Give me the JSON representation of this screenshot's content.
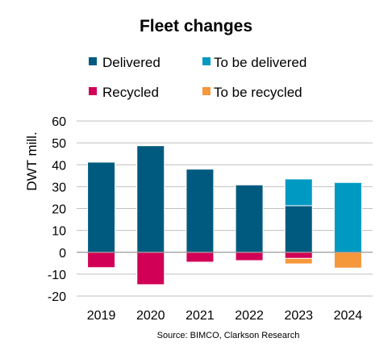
{
  "chart_data": {
    "type": "bar",
    "stacked": true,
    "title": "Fleet changes",
    "ylabel": "DWT mill.",
    "xlabel": "",
    "ylim": [
      -20,
      60
    ],
    "yticks": [
      60,
      50,
      40,
      30,
      20,
      10,
      0,
      -10,
      -20
    ],
    "grid": true,
    "legend_position": "top",
    "categories": [
      "2019",
      "2020",
      "2021",
      "2022",
      "2023",
      "2024"
    ],
    "series": [
      {
        "name": "Delivered",
        "color": "#005a7f",
        "values": [
          41.2,
          48.7,
          38.0,
          30.8,
          21.3,
          0
        ]
      },
      {
        "name": "To be delivered",
        "color": "#0099c2",
        "values": [
          0,
          0,
          0,
          0,
          12.2,
          31.9
        ]
      },
      {
        "name": "Recycled",
        "color": "#d10056",
        "values": [
          -7.0,
          -14.8,
          -4.5,
          -3.8,
          -2.8,
          0
        ]
      },
      {
        "name": "To be recycled",
        "color": "#f5973b",
        "values": [
          0,
          0,
          0,
          0,
          -2.5,
          -7.2
        ]
      }
    ],
    "source": "Source: BIMCO, Clarkson Research"
  }
}
